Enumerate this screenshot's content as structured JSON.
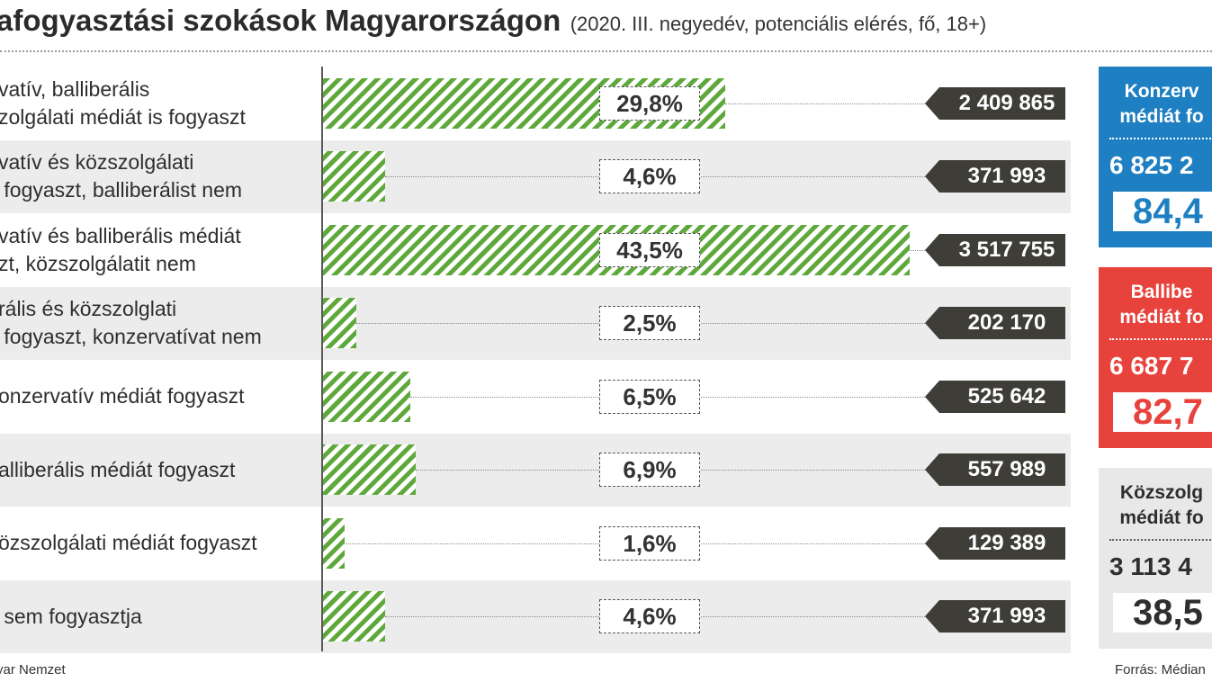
{
  "header": {
    "title": "afogyasztási szokások Magyarországon",
    "subtitle": "(2020. III. negyedév, potenciális elérés, fő, 18+)"
  },
  "colors": {
    "bar": "#5fa83c",
    "blue": "#1e7fc2",
    "red": "#e8423d",
    "gray": "#e8e8e8",
    "tag": "#3f3d38"
  },
  "chart_data": {
    "type": "bar",
    "orientation": "horizontal",
    "categories": [
      "vatív, balliberális\nzolgálati médiát is fogyaszt",
      "vatív és közszolgálati\n fogyaszt, balliberálist nem",
      "vatív és balliberális médiát\nzt, közszolgálatit nem",
      "rális és közszolglati\n fogyaszt, konzervatívat nem",
      "onzervatív médiát fogyaszt",
      "alliberális médiát fogyaszt",
      "özszolgálati médiát fogyaszt",
      " sem fogyasztja"
    ],
    "values": [
      29.8,
      4.6,
      43.5,
      2.5,
      6.5,
      6.9,
      1.6,
      4.6
    ],
    "value_labels": [
      "29,8%",
      "4,6%",
      "43,5%",
      "2,5%",
      "6,5%",
      "6,9%",
      "1,6%",
      "4,6%"
    ],
    "counts": [
      "2 409 865",
      "371 993",
      "3 517 755",
      "202 170",
      "525 642",
      "557 989",
      "129 389",
      "371 993"
    ],
    "xlim": [
      0,
      43.5
    ],
    "grid": false
  },
  "summary": [
    {
      "label": "Konzerv\nmédiát fo",
      "count": "6 825 2",
      "pct": "84,4",
      "color": "blue"
    },
    {
      "label": "Ballibe\nmédiát fo",
      "count": "6 687 7",
      "pct": "82,7",
      "color": "red"
    },
    {
      "label": "Közszolg\nmédiát fo",
      "count": "3 113 4",
      "pct": "38,5",
      "color": "gray"
    }
  ],
  "footer": {
    "left": "yar Nemzet",
    "right": "Forrás: Médian"
  }
}
